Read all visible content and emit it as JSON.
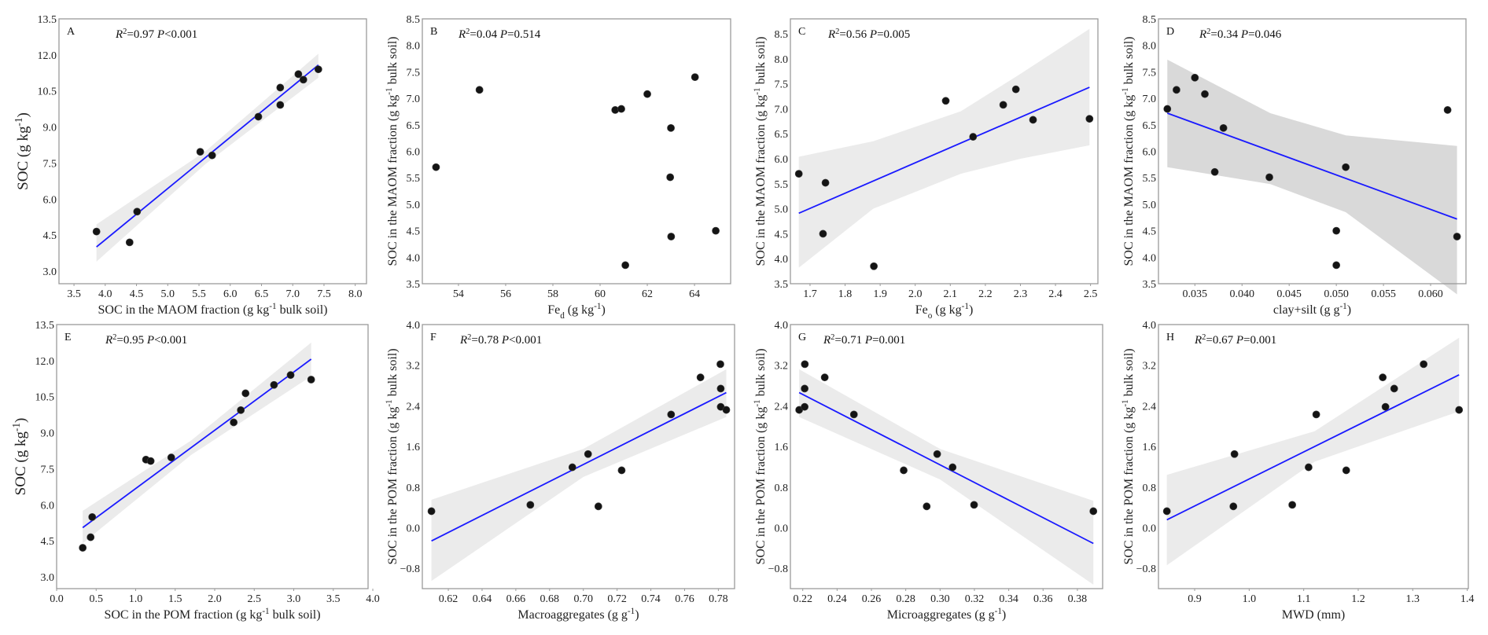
{
  "chart_data": [
    {
      "type": "scatter",
      "panel": "A",
      "stats": [
        {
          "t": "R",
          "i": true
        },
        {
          "t": "2",
          "sup": true
        },
        {
          "t": "=0.97 "
        },
        {
          "t": "P",
          "i": true
        },
        {
          "t": "<0.001"
        }
      ],
      "xlabel": [
        {
          "t": "SOC in the MAOM fraction (g kg"
        },
        {
          "t": "-1",
          "sup": true
        },
        {
          "t": " bulk soil)"
        }
      ],
      "ylabel": [
        {
          "t": "SOC (g kg"
        },
        {
          "t": "-1",
          "sup": true
        },
        {
          "t": ")"
        }
      ],
      "xlim": [
        3.26,
        8.18
      ],
      "ylim": [
        2.48,
        13.5
      ],
      "xticks": [
        "3.5",
        "4.0",
        "4.5",
        "5.0",
        "5.5",
        "6.0",
        "6.5",
        "7.0",
        "7.5",
        "8.0"
      ],
      "yticks": [
        "3.0",
        "4.5",
        "6.0",
        "7.5",
        "9.0",
        "10.5",
        "12.0",
        "13.5"
      ],
      "points": [
        [
          3.86,
          4.65
        ],
        [
          4.39,
          4.2
        ],
        [
          4.51,
          5.48
        ],
        [
          5.52,
          7.97
        ],
        [
          5.71,
          7.82
        ],
        [
          6.45,
          9.43
        ],
        [
          6.8,
          10.64
        ],
        [
          6.8,
          9.92
        ],
        [
          7.09,
          11.2
        ],
        [
          7.17,
          10.97
        ],
        [
          7.41,
          11.4
        ]
      ],
      "fit": [
        [
          3.86,
          4.01
        ],
        [
          7.41,
          11.58
        ]
      ],
      "ci": [
        [
          3.86,
          3.4,
          4.95
        ],
        [
          5.6,
          7.45,
          7.98
        ],
        [
          7.41,
          11.05,
          12.05
        ]
      ],
      "ci_color": "#ebebeb"
    },
    {
      "type": "scatter",
      "panel": "B",
      "stats": [
        {
          "t": "R",
          "i": true
        },
        {
          "t": "2",
          "sup": true
        },
        {
          "t": "=0.04 "
        },
        {
          "t": "P",
          "i": true
        },
        {
          "t": "=0.514"
        }
      ],
      "xlabel": [
        {
          "t": "Fe"
        },
        {
          "t": "d",
          "sub": true
        },
        {
          "t": " (g kg"
        },
        {
          "t": "-1",
          "sup": true
        },
        {
          "t": ")"
        }
      ],
      "ylabel": [
        {
          "t": "SOC in the MAOM fraction (g kg"
        },
        {
          "t": "-1",
          "sup": true
        },
        {
          "t": " bulk soil)"
        }
      ],
      "xlim": [
        52.47,
        65.53
      ],
      "ylim": [
        3.5,
        8.5
      ],
      "xticks": [
        "54",
        "56",
        "58",
        "60",
        "62",
        "64"
      ],
      "yticks": [
        "3.5",
        "4.0",
        "4.5",
        "5.0",
        "5.5",
        "6.0",
        "6.5",
        "7.0",
        "7.5",
        "8.0",
        "8.5"
      ],
      "points": [
        [
          53.05,
          5.7
        ],
        [
          54.89,
          7.16
        ],
        [
          60.64,
          6.78
        ],
        [
          60.9,
          6.8
        ],
        [
          62.0,
          7.08
        ],
        [
          64.02,
          7.4
        ],
        [
          63.0,
          6.44
        ],
        [
          62.97,
          5.51
        ],
        [
          63.01,
          4.39
        ],
        [
          64.9,
          4.5
        ],
        [
          61.07,
          3.85
        ]
      ],
      "fit": null,
      "ci": null,
      "ci_color": "#ebebeb"
    },
    {
      "type": "scatter",
      "panel": "C",
      "stats": [
        {
          "t": "R",
          "i": true
        },
        {
          "t": "2",
          "sup": true
        },
        {
          "t": "=0.56 "
        },
        {
          "t": "P",
          "i": true
        },
        {
          "t": "=0.005"
        }
      ],
      "xlabel": [
        {
          "t": "Fe"
        },
        {
          "t": "o",
          "sub": true
        },
        {
          "t": " (g kg"
        },
        {
          "t": "-1",
          "sup": true
        },
        {
          "t": ")"
        }
      ],
      "ylabel": [
        {
          "t": "SOC in the MAOM fraction (g kg"
        },
        {
          "t": "-1",
          "sup": true
        },
        {
          "t": " bulk soil)"
        }
      ],
      "xlim": [
        1.644,
        2.521
      ],
      "ylim": [
        3.5,
        8.8
      ],
      "xticks": [
        "1.7",
        "1.8",
        "1.9",
        "2.0",
        "2.1",
        "2.2",
        "2.3",
        "2.4",
        "2.5"
      ],
      "yticks": [
        "3.5",
        "4.0",
        "4.5",
        "5.0",
        "5.5",
        "6.0",
        "6.5",
        "7.0",
        "7.5",
        "8.0",
        "8.5"
      ],
      "points": [
        [
          1.668,
          5.7
        ],
        [
          1.744,
          5.52
        ],
        [
          1.737,
          4.5
        ],
        [
          1.882,
          3.85
        ],
        [
          2.087,
          7.16
        ],
        [
          2.165,
          6.44
        ],
        [
          2.251,
          7.08
        ],
        [
          2.287,
          7.39
        ],
        [
          2.336,
          6.78
        ],
        [
          2.497,
          6.8
        ]
      ],
      "fit": [
        [
          1.668,
          4.91
        ],
        [
          2.497,
          7.43
        ]
      ],
      "ci": [
        [
          1.668,
          3.82,
          6.04
        ],
        [
          1.88,
          5.0,
          6.35
        ],
        [
          2.13,
          5.7,
          6.95
        ],
        [
          2.3,
          6.0,
          7.7
        ],
        [
          2.497,
          6.27,
          8.6
        ]
      ],
      "ci_color": "#ebebeb"
    },
    {
      "type": "scatter",
      "panel": "D",
      "stats": [
        {
          "t": "R",
          "i": true
        },
        {
          "t": "2",
          "sup": true
        },
        {
          "t": "=0.34 "
        },
        {
          "t": "P",
          "i": true
        },
        {
          "t": "=0.046"
        }
      ],
      "xlabel": [
        {
          "t": "clay+silt (g g"
        },
        {
          "t": "-1",
          "sup": true
        },
        {
          "t": ")"
        }
      ],
      "ylabel": [
        {
          "t": "SOC in the MAOM fraction (g kg"
        },
        {
          "t": "-1",
          "sup": true
        },
        {
          "t": " bulk soil)"
        }
      ],
      "xlim": [
        0.03114,
        0.06375
      ],
      "ylim": [
        3.5,
        8.5
      ],
      "xticks": [
        "0.035",
        "0.040",
        "0.045",
        "0.050",
        "0.055",
        "0.060"
      ],
      "yticks": [
        "3.5",
        "4.0",
        "4.5",
        "5.0",
        "5.5",
        "6.0",
        "6.5",
        "7.0",
        "7.5",
        "8.0",
        "8.5"
      ],
      "points": [
        [
          0.03208,
          6.8
        ],
        [
          0.03305,
          7.16
        ],
        [
          0.035,
          7.39
        ],
        [
          0.03606,
          7.08
        ],
        [
          0.03803,
          6.44
        ],
        [
          0.03711,
          5.61
        ],
        [
          0.0429,
          5.51
        ],
        [
          0.051,
          5.7
        ],
        [
          0.05,
          4.5
        ],
        [
          0.05,
          3.85
        ],
        [
          0.0618,
          6.78
        ],
        [
          0.0628,
          4.39
        ]
      ],
      "fit": [
        [
          0.03208,
          6.72
        ],
        [
          0.0628,
          4.72
        ]
      ],
      "ci": [
        [
          0.03208,
          5.7,
          7.73
        ],
        [
          0.043,
          5.38,
          6.72
        ],
        [
          0.051,
          4.85,
          6.3
        ],
        [
          0.0628,
          3.3,
          6.1
        ]
      ],
      "ci_color": "#d9d9d9"
    },
    {
      "type": "scatter",
      "panel": "E",
      "stats": [
        {
          "t": "R",
          "i": true
        },
        {
          "t": "2",
          "sup": true
        },
        {
          "t": "=0.95 "
        },
        {
          "t": "P",
          "i": true
        },
        {
          "t": "<0.001"
        }
      ],
      "xlabel": [
        {
          "t": "SOC in the POM fraction (g kg"
        },
        {
          "t": "-1",
          "sup": true
        },
        {
          "t": " bulk soil)"
        }
      ],
      "ylabel": [
        {
          "t": "SOC (g kg"
        },
        {
          "t": "-1",
          "sup": true
        },
        {
          "t": ")"
        }
      ],
      "xlim": [
        0.0,
        3.94
      ],
      "ylim": [
        2.51,
        13.5
      ],
      "xticks": [
        "0.0",
        "0.5",
        "1.0",
        "1.5",
        "2.0",
        "2.5",
        "3.0",
        "3.5",
        "4.0"
      ],
      "yticks": [
        "3.0",
        "4.5",
        "6.0",
        "7.5",
        "9.0",
        "10.5",
        "12.0",
        "13.5"
      ],
      "points": [
        [
          0.33,
          4.21
        ],
        [
          0.43,
          4.65
        ],
        [
          0.45,
          5.49
        ],
        [
          1.13,
          7.88
        ],
        [
          1.19,
          7.82
        ],
        [
          1.45,
          7.97
        ],
        [
          2.24,
          9.43
        ],
        [
          2.33,
          9.94
        ],
        [
          2.39,
          10.64
        ],
        [
          2.75,
          10.99
        ],
        [
          2.96,
          11.4
        ],
        [
          3.22,
          11.21
        ]
      ],
      "fit": [
        [
          0.33,
          5.05
        ],
        [
          3.22,
          12.06
        ]
      ],
      "ci": [
        [
          0.33,
          4.4,
          5.75
        ],
        [
          1.7,
          8.07,
          8.67
        ],
        [
          3.22,
          11.35,
          12.75
        ]
      ],
      "ci_color": "#ebebeb"
    },
    {
      "type": "scatter",
      "panel": "F",
      "stats": [
        {
          "t": "R",
          "i": true
        },
        {
          "t": "2",
          "sup": true
        },
        {
          "t": "=0.78 "
        },
        {
          "t": "P",
          "i": true
        },
        {
          "t": "<0.001"
        }
      ],
      "xlabel": [
        {
          "t": "Macroaggregates (g g"
        },
        {
          "t": "-1",
          "sup": true
        },
        {
          "t": ")"
        }
      ],
      "ylabel": [
        {
          "t": "SOC in the POM fraction (g kg"
        },
        {
          "t": "-1",
          "sup": true
        },
        {
          "t": " bulk soil)"
        }
      ],
      "xlim": [
        0.6046,
        0.7896
      ],
      "ylim": [
        -1.2,
        4.0
      ],
      "xticks": [
        "0.62",
        "0.64",
        "0.66",
        "0.68",
        "0.70",
        "0.72",
        "0.74",
        "0.76",
        "0.78"
      ],
      "yticks": [
        "-0.8",
        "0.0",
        "0.8",
        "1.6",
        "2.4",
        "3.2",
        "4.0"
      ],
      "points": [
        [
          0.61,
          0.325
        ],
        [
          0.6686,
          0.45
        ],
        [
          0.6935,
          1.19
        ],
        [
          0.7028,
          1.45
        ],
        [
          0.7089,
          0.42
        ],
        [
          0.7227,
          1.13
        ],
        [
          0.752,
          2.23
        ],
        [
          0.7694,
          2.96
        ],
        [
          0.7812,
          3.22
        ],
        [
          0.7814,
          2.74
        ],
        [
          0.7814,
          2.38
        ],
        [
          0.7847,
          2.32
        ]
      ],
      "fit": [
        [
          0.61,
          -0.26
        ],
        [
          0.7847,
          2.66
        ]
      ],
      "ci": [
        [
          0.61,
          -1.05,
          0.55
        ],
        [
          0.7,
          1.0,
          1.55
        ],
        [
          0.7847,
          2.18,
          3.12
        ]
      ],
      "ci_color": "#ebebeb"
    },
    {
      "type": "scatter",
      "panel": "G",
      "stats": [
        {
          "t": "R",
          "i": true
        },
        {
          "t": "2",
          "sup": true
        },
        {
          "t": "=0.71 "
        },
        {
          "t": "P",
          "i": true
        },
        {
          "t": "=0.001"
        }
      ],
      "xlabel": [
        {
          "t": "Microaggregates (g g"
        },
        {
          "t": "-1",
          "sup": true
        },
        {
          "t": ")"
        }
      ],
      "ylabel": [
        {
          "t": "SOC in the POM fraction (g kg"
        },
        {
          "t": "-1",
          "sup": true
        },
        {
          "t": " bulk soil)"
        }
      ],
      "xlim": [
        0.2128,
        0.3947
      ],
      "ylim": [
        -1.2,
        4.0
      ],
      "xticks": [
        "0.22",
        "0.24",
        "0.26",
        "0.28",
        "0.30",
        "0.32",
        "0.34",
        "0.36",
        "0.38"
      ],
      "yticks": [
        "-0.8",
        "0.0",
        "0.8",
        "1.6",
        "2.4",
        "3.2",
        "4.0"
      ],
      "points": [
        [
          0.2179,
          2.32
        ],
        [
          0.2211,
          2.38
        ],
        [
          0.2211,
          2.74
        ],
        [
          0.2212,
          3.22
        ],
        [
          0.2328,
          2.96
        ],
        [
          0.2498,
          2.23
        ],
        [
          0.2788,
          1.13
        ],
        [
          0.2922,
          0.42
        ],
        [
          0.2983,
          1.45
        ],
        [
          0.3073,
          1.19
        ],
        [
          0.3198,
          0.45
        ],
        [
          0.3893,
          0.325
        ]
      ],
      "fit": [
        [
          0.2179,
          2.66
        ],
        [
          0.3893,
          -0.31
        ]
      ],
      "ci": [
        [
          0.2179,
          2.18,
          3.12
        ],
        [
          0.3,
          0.95,
          1.55
        ],
        [
          0.3893,
          -1.12,
          0.53
        ]
      ],
      "ci_color": "#ebebeb"
    },
    {
      "type": "scatter",
      "panel": "H",
      "stats": [
        {
          "t": "R",
          "i": true
        },
        {
          "t": "2",
          "sup": true
        },
        {
          "t": "=0.67 "
        },
        {
          "t": "P",
          "i": true
        },
        {
          "t": "=0.001"
        }
      ],
      "xlabel": [
        {
          "t": "MWD (mm)"
        }
      ],
      "ylabel": [
        {
          "t": "SOC in the POM fraction (g kg"
        },
        {
          "t": "-1",
          "sup": true
        },
        {
          "t": " bulk soil)"
        }
      ],
      "xlim": [
        0.8336,
        1.402
      ],
      "ylim": [
        -1.2,
        4.0
      ],
      "xticks": [
        "0.9",
        "1.0",
        "1.1",
        "1.2",
        "1.3",
        "1.4"
      ],
      "yticks": [
        "-0.8",
        "0.0",
        "0.8",
        "1.6",
        "2.4",
        "3.2",
        "4.0"
      ],
      "points": [
        [
          0.849,
          0.325
        ],
        [
          0.971,
          0.42
        ],
        [
          0.973,
          1.45
        ],
        [
          1.079,
          0.45
        ],
        [
          1.109,
          1.19
        ],
        [
          1.123,
          2.23
        ],
        [
          1.178,
          1.13
        ],
        [
          1.245,
          2.96
        ],
        [
          1.25,
          2.38
        ],
        [
          1.266,
          2.74
        ],
        [
          1.32,
          3.22
        ],
        [
          1.385,
          2.32
        ]
      ],
      "fit": [
        [
          0.849,
          0.155
        ],
        [
          1.385,
          3.01
        ]
      ],
      "ci": [
        [
          0.849,
          -0.74,
          1.04
        ],
        [
          1.12,
          1.3,
          1.9
        ],
        [
          1.385,
          2.29,
          3.74
        ]
      ],
      "ci_color": "#ebebeb"
    }
  ],
  "colors": {
    "fit_line": "#1a1aff",
    "points": "#141414"
  }
}
